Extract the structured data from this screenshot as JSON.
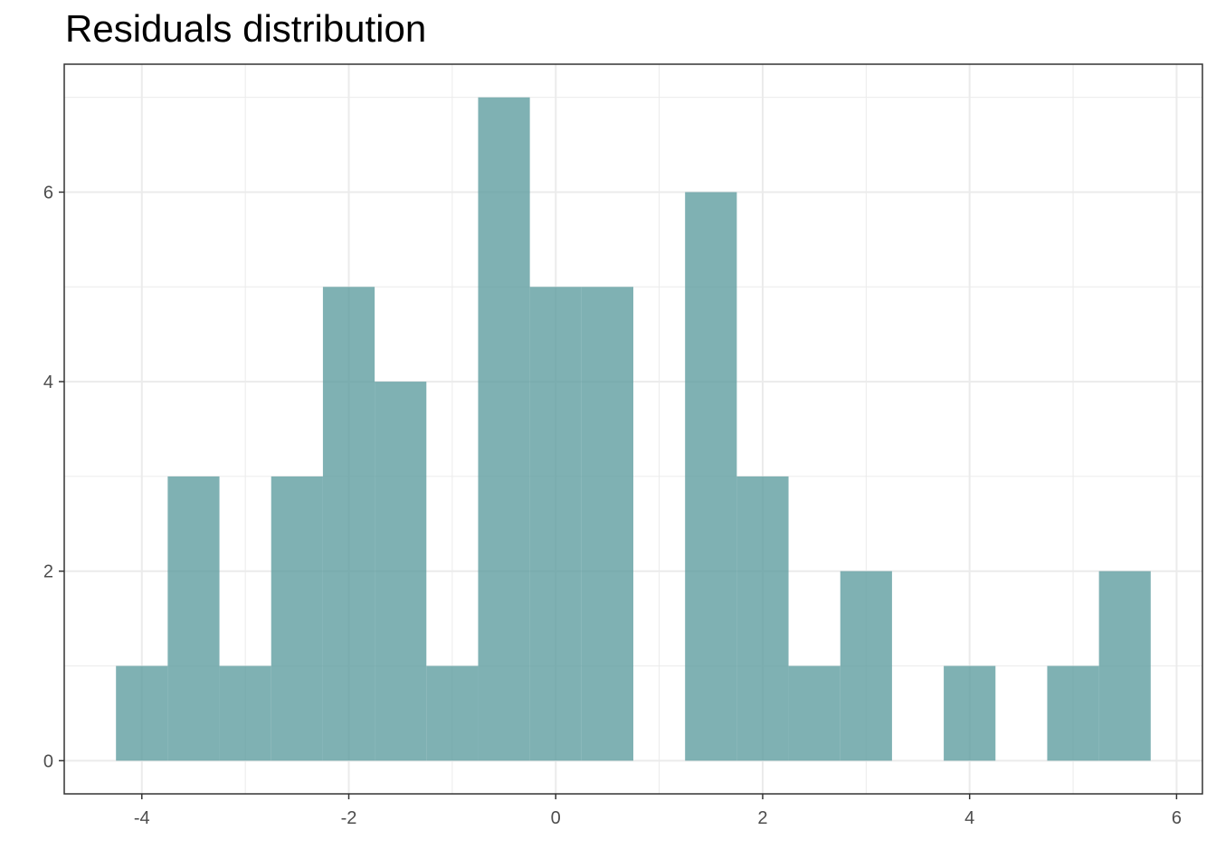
{
  "chart_data": {
    "type": "bar",
    "title": "Residuals distribution",
    "xlabel": "",
    "ylabel": "",
    "bin_width": 0.5,
    "bins": [
      {
        "x0": -4.25,
        "x1": -3.75,
        "count": 1
      },
      {
        "x0": -3.75,
        "x1": -3.25,
        "count": 3
      },
      {
        "x0": -3.25,
        "x1": -2.75,
        "count": 1
      },
      {
        "x0": -2.75,
        "x1": -2.25,
        "count": 3
      },
      {
        "x0": -2.25,
        "x1": -1.75,
        "count": 5
      },
      {
        "x0": -1.75,
        "x1": -1.25,
        "count": 4
      },
      {
        "x0": -1.25,
        "x1": -0.75,
        "count": 1
      },
      {
        "x0": -0.75,
        "x1": -0.25,
        "count": 7
      },
      {
        "x0": -0.25,
        "x1": 0.25,
        "count": 5
      },
      {
        "x0": 0.25,
        "x1": 0.75,
        "count": 5
      },
      {
        "x0": 0.75,
        "x1": 1.25,
        "count": 0
      },
      {
        "x0": 1.25,
        "x1": 1.75,
        "count": 6
      },
      {
        "x0": 1.75,
        "x1": 2.25,
        "count": 3
      },
      {
        "x0": 2.25,
        "x1": 2.75,
        "count": 1
      },
      {
        "x0": 2.75,
        "x1": 3.25,
        "count": 2
      },
      {
        "x0": 3.25,
        "x1": 3.75,
        "count": 0
      },
      {
        "x0": 3.75,
        "x1": 4.25,
        "count": 1
      },
      {
        "x0": 4.25,
        "x1": 4.75,
        "count": 0
      },
      {
        "x0": 4.75,
        "x1": 5.25,
        "count": 1
      },
      {
        "x0": 5.25,
        "x1": 5.75,
        "count": 2
      }
    ],
    "xlim": [
      -4.75,
      6.25
    ],
    "ylim": [
      -0.35,
      7.35
    ],
    "x_ticks": [
      -4,
      -2,
      0,
      2,
      4,
      6
    ],
    "x_tick_labels": [
      "-4",
      "-2",
      "0",
      "2",
      "4",
      "6"
    ],
    "y_ticks": [
      0,
      2,
      4,
      6
    ],
    "y_tick_labels": [
      "0",
      "2",
      "4",
      "6"
    ],
    "grid": true,
    "legend": "none",
    "colors": {
      "bar_fill": "#5f9ea0",
      "bar_opacity": 0.8,
      "grid": "#ebebeb",
      "panel_border": "#333333"
    }
  }
}
